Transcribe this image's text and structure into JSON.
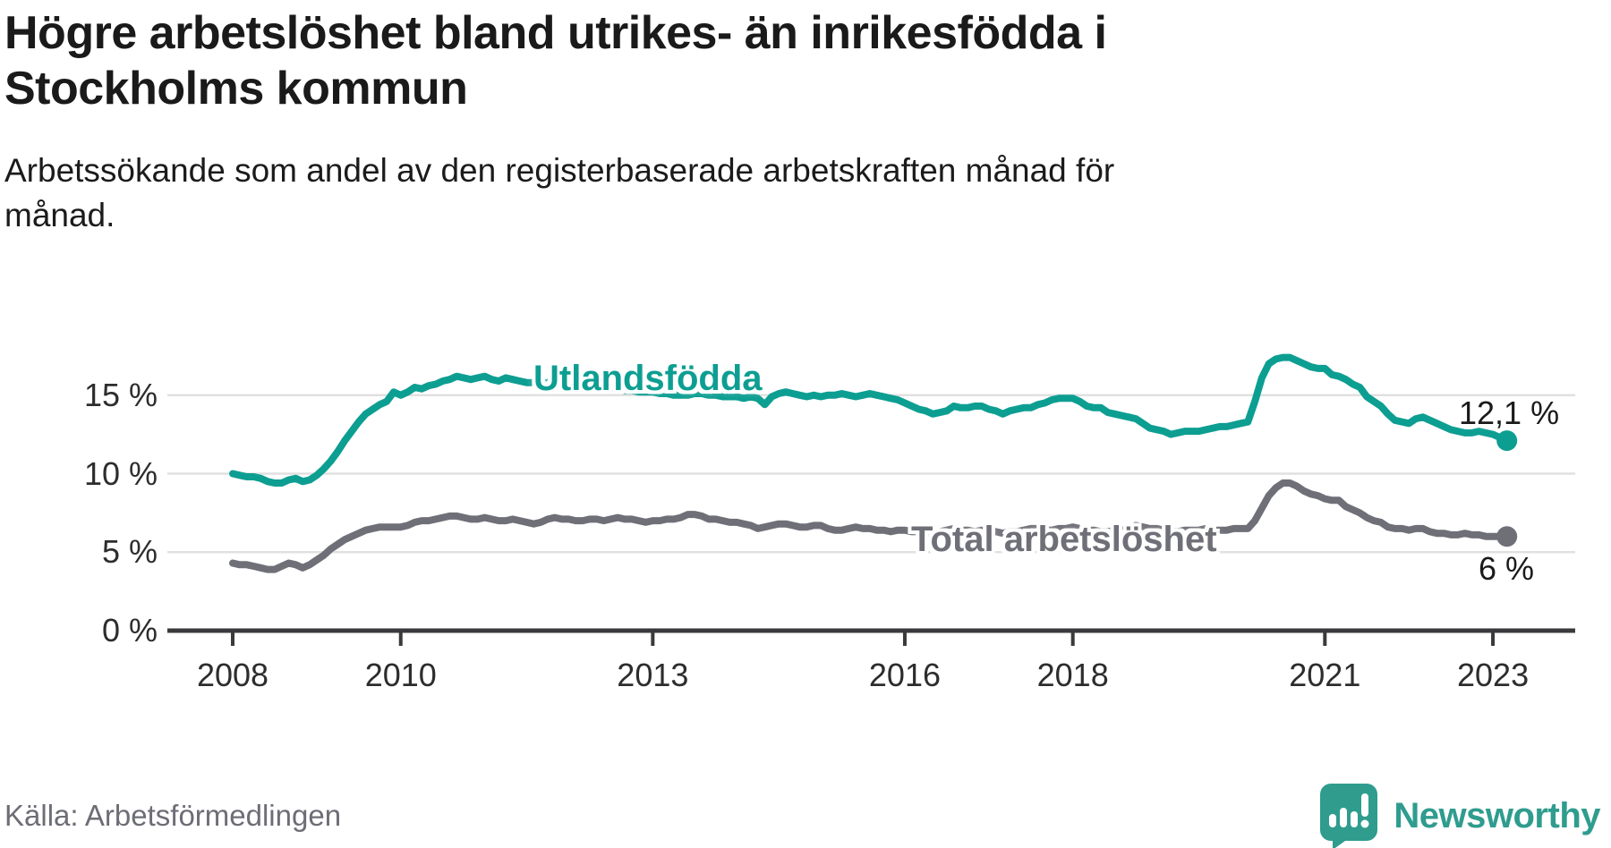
{
  "header": {
    "title_lines": [
      "Högre arbetslöshet bland utrikes- än inrikesfödda i",
      "Stockholms kommun"
    ],
    "subtitle_lines": [
      "Arbetssökande som andel av den registerbaserade arbetskraften månad för",
      "månad."
    ]
  },
  "footer": {
    "source": "Källa: Arbetsförmedlingen",
    "logo_text": "Newsworthy"
  },
  "colors": {
    "teal": "#0D9E92",
    "gray": "#6F6F78",
    "axis": "#3A3A3C",
    "gridline": "#E0E0E0",
    "logo_teal": "#2F9C8E",
    "text_dark": "#1a1a1a"
  },
  "chart_data": {
    "type": "line",
    "unit": "%",
    "x_start": "2008-01",
    "x_end": "2023-03",
    "x_interval": "monthly",
    "ylim": [
      0,
      18
    ],
    "grid": "horizontal",
    "labels_inline": true,
    "y_ticks": [
      {
        "value": 15,
        "label": "15 %"
      },
      {
        "value": 10,
        "label": "10 %"
      },
      {
        "value": 5,
        "label": "5 %"
      },
      {
        "value": 0,
        "label": "0 %"
      }
    ],
    "x_ticks": [
      {
        "year": 2008,
        "label": "2008"
      },
      {
        "year": 2010,
        "label": "2010"
      },
      {
        "year": 2013,
        "label": "2013"
      },
      {
        "year": 2016,
        "label": "2016"
      },
      {
        "year": 2018,
        "label": "2018"
      },
      {
        "year": 2021,
        "label": "2021"
      },
      {
        "year": 2023,
        "label": "2023"
      }
    ],
    "series": [
      {
        "name": "Utlandsfödda",
        "color": "#0D9E92",
        "end_label": "12,1 %",
        "end_value": 12.1,
        "values": [
          10.0,
          9.9,
          9.8,
          9.8,
          9.7,
          9.5,
          9.4,
          9.4,
          9.6,
          9.7,
          9.5,
          9.6,
          9.9,
          10.3,
          10.8,
          11.4,
          12.1,
          12.7,
          13.3,
          13.8,
          14.1,
          14.4,
          14.6,
          15.2,
          15.0,
          15.2,
          15.5,
          15.4,
          15.6,
          15.7,
          15.9,
          16.0,
          16.2,
          16.1,
          16.0,
          16.1,
          16.2,
          16.0,
          15.9,
          16.1,
          16.0,
          15.9,
          15.8,
          15.8,
          15.7,
          15.8,
          15.9,
          15.8,
          15.8,
          15.7,
          15.7,
          15.6,
          15.5,
          15.5,
          15.4,
          15.4,
          15.3,
          15.3,
          15.2,
          15.2,
          15.2,
          15.1,
          15.1,
          15.0,
          15.0,
          15.0,
          15.1,
          15.1,
          15.0,
          15.0,
          14.9,
          14.9,
          14.9,
          14.8,
          14.9,
          14.8,
          14.4,
          14.9,
          15.1,
          15.2,
          15.1,
          15.0,
          14.9,
          15.0,
          14.9,
          15.0,
          15.0,
          15.1,
          15.0,
          14.9,
          15.0,
          15.1,
          15.0,
          14.9,
          14.8,
          14.7,
          14.5,
          14.3,
          14.1,
          14.0,
          13.8,
          13.9,
          14.0,
          14.3,
          14.2,
          14.2,
          14.3,
          14.3,
          14.1,
          14.0,
          13.8,
          14.0,
          14.1,
          14.2,
          14.2,
          14.4,
          14.5,
          14.7,
          14.8,
          14.8,
          14.8,
          14.6,
          14.3,
          14.2,
          14.2,
          13.9,
          13.8,
          13.7,
          13.6,
          13.5,
          13.2,
          12.9,
          12.8,
          12.7,
          12.5,
          12.6,
          12.7,
          12.7,
          12.7,
          12.8,
          12.9,
          13.0,
          13.0,
          13.1,
          13.2,
          13.3,
          14.6,
          16.1,
          17.0,
          17.3,
          17.4,
          17.4,
          17.2,
          17.0,
          16.8,
          16.7,
          16.7,
          16.3,
          16.2,
          16.0,
          15.7,
          15.5,
          14.9,
          14.6,
          14.3,
          13.8,
          13.4,
          13.3,
          13.2,
          13.5,
          13.6,
          13.4,
          13.2,
          13.0,
          12.8,
          12.7,
          12.6,
          12.6,
          12.7,
          12.6,
          12.5,
          12.3,
          12.1
        ]
      },
      {
        "name": "Total arbetslöshet",
        "color": "#6F6F78",
        "end_label": "6 %",
        "end_value": 6.0,
        "values": [
          4.3,
          4.2,
          4.2,
          4.1,
          4.0,
          3.9,
          3.9,
          4.1,
          4.3,
          4.2,
          4.0,
          4.2,
          4.5,
          4.8,
          5.2,
          5.5,
          5.8,
          6.0,
          6.2,
          6.4,
          6.5,
          6.6,
          6.6,
          6.6,
          6.6,
          6.7,
          6.9,
          7.0,
          7.0,
          7.1,
          7.2,
          7.3,
          7.3,
          7.2,
          7.1,
          7.1,
          7.2,
          7.1,
          7.0,
          7.0,
          7.1,
          7.0,
          6.9,
          6.8,
          6.9,
          7.1,
          7.2,
          7.1,
          7.1,
          7.0,
          7.0,
          7.1,
          7.1,
          7.0,
          7.1,
          7.2,
          7.1,
          7.1,
          7.0,
          6.9,
          7.0,
          7.0,
          7.1,
          7.1,
          7.2,
          7.4,
          7.4,
          7.3,
          7.1,
          7.1,
          7.0,
          6.9,
          6.9,
          6.8,
          6.7,
          6.5,
          6.6,
          6.7,
          6.8,
          6.8,
          6.7,
          6.6,
          6.6,
          6.7,
          6.7,
          6.5,
          6.4,
          6.4,
          6.5,
          6.6,
          6.5,
          6.5,
          6.4,
          6.4,
          6.3,
          6.4,
          6.4,
          6.3,
          6.3,
          6.2,
          6.2,
          6.3,
          6.4,
          6.5,
          6.4,
          6.4,
          6.3,
          6.4,
          6.4,
          6.3,
          6.2,
          6.3,
          6.3,
          6.4,
          6.5,
          6.5,
          6.4,
          6.4,
          6.5,
          6.5,
          6.6,
          6.5,
          6.4,
          6.4,
          6.3,
          6.3,
          6.4,
          6.4,
          6.5,
          6.7,
          6.6,
          6.5,
          6.5,
          6.4,
          6.3,
          6.3,
          6.4,
          6.4,
          6.4,
          6.5,
          6.4,
          6.4,
          6.4,
          6.5,
          6.5,
          6.5,
          7.0,
          7.8,
          8.6,
          9.1,
          9.4,
          9.4,
          9.2,
          8.9,
          8.7,
          8.6,
          8.4,
          8.3,
          8.3,
          7.9,
          7.7,
          7.5,
          7.2,
          7.0,
          6.9,
          6.6,
          6.5,
          6.5,
          6.4,
          6.5,
          6.5,
          6.3,
          6.2,
          6.2,
          6.1,
          6.1,
          6.2,
          6.1,
          6.1,
          6.0,
          6.0,
          6.0,
          6.0
        ]
      }
    ]
  }
}
